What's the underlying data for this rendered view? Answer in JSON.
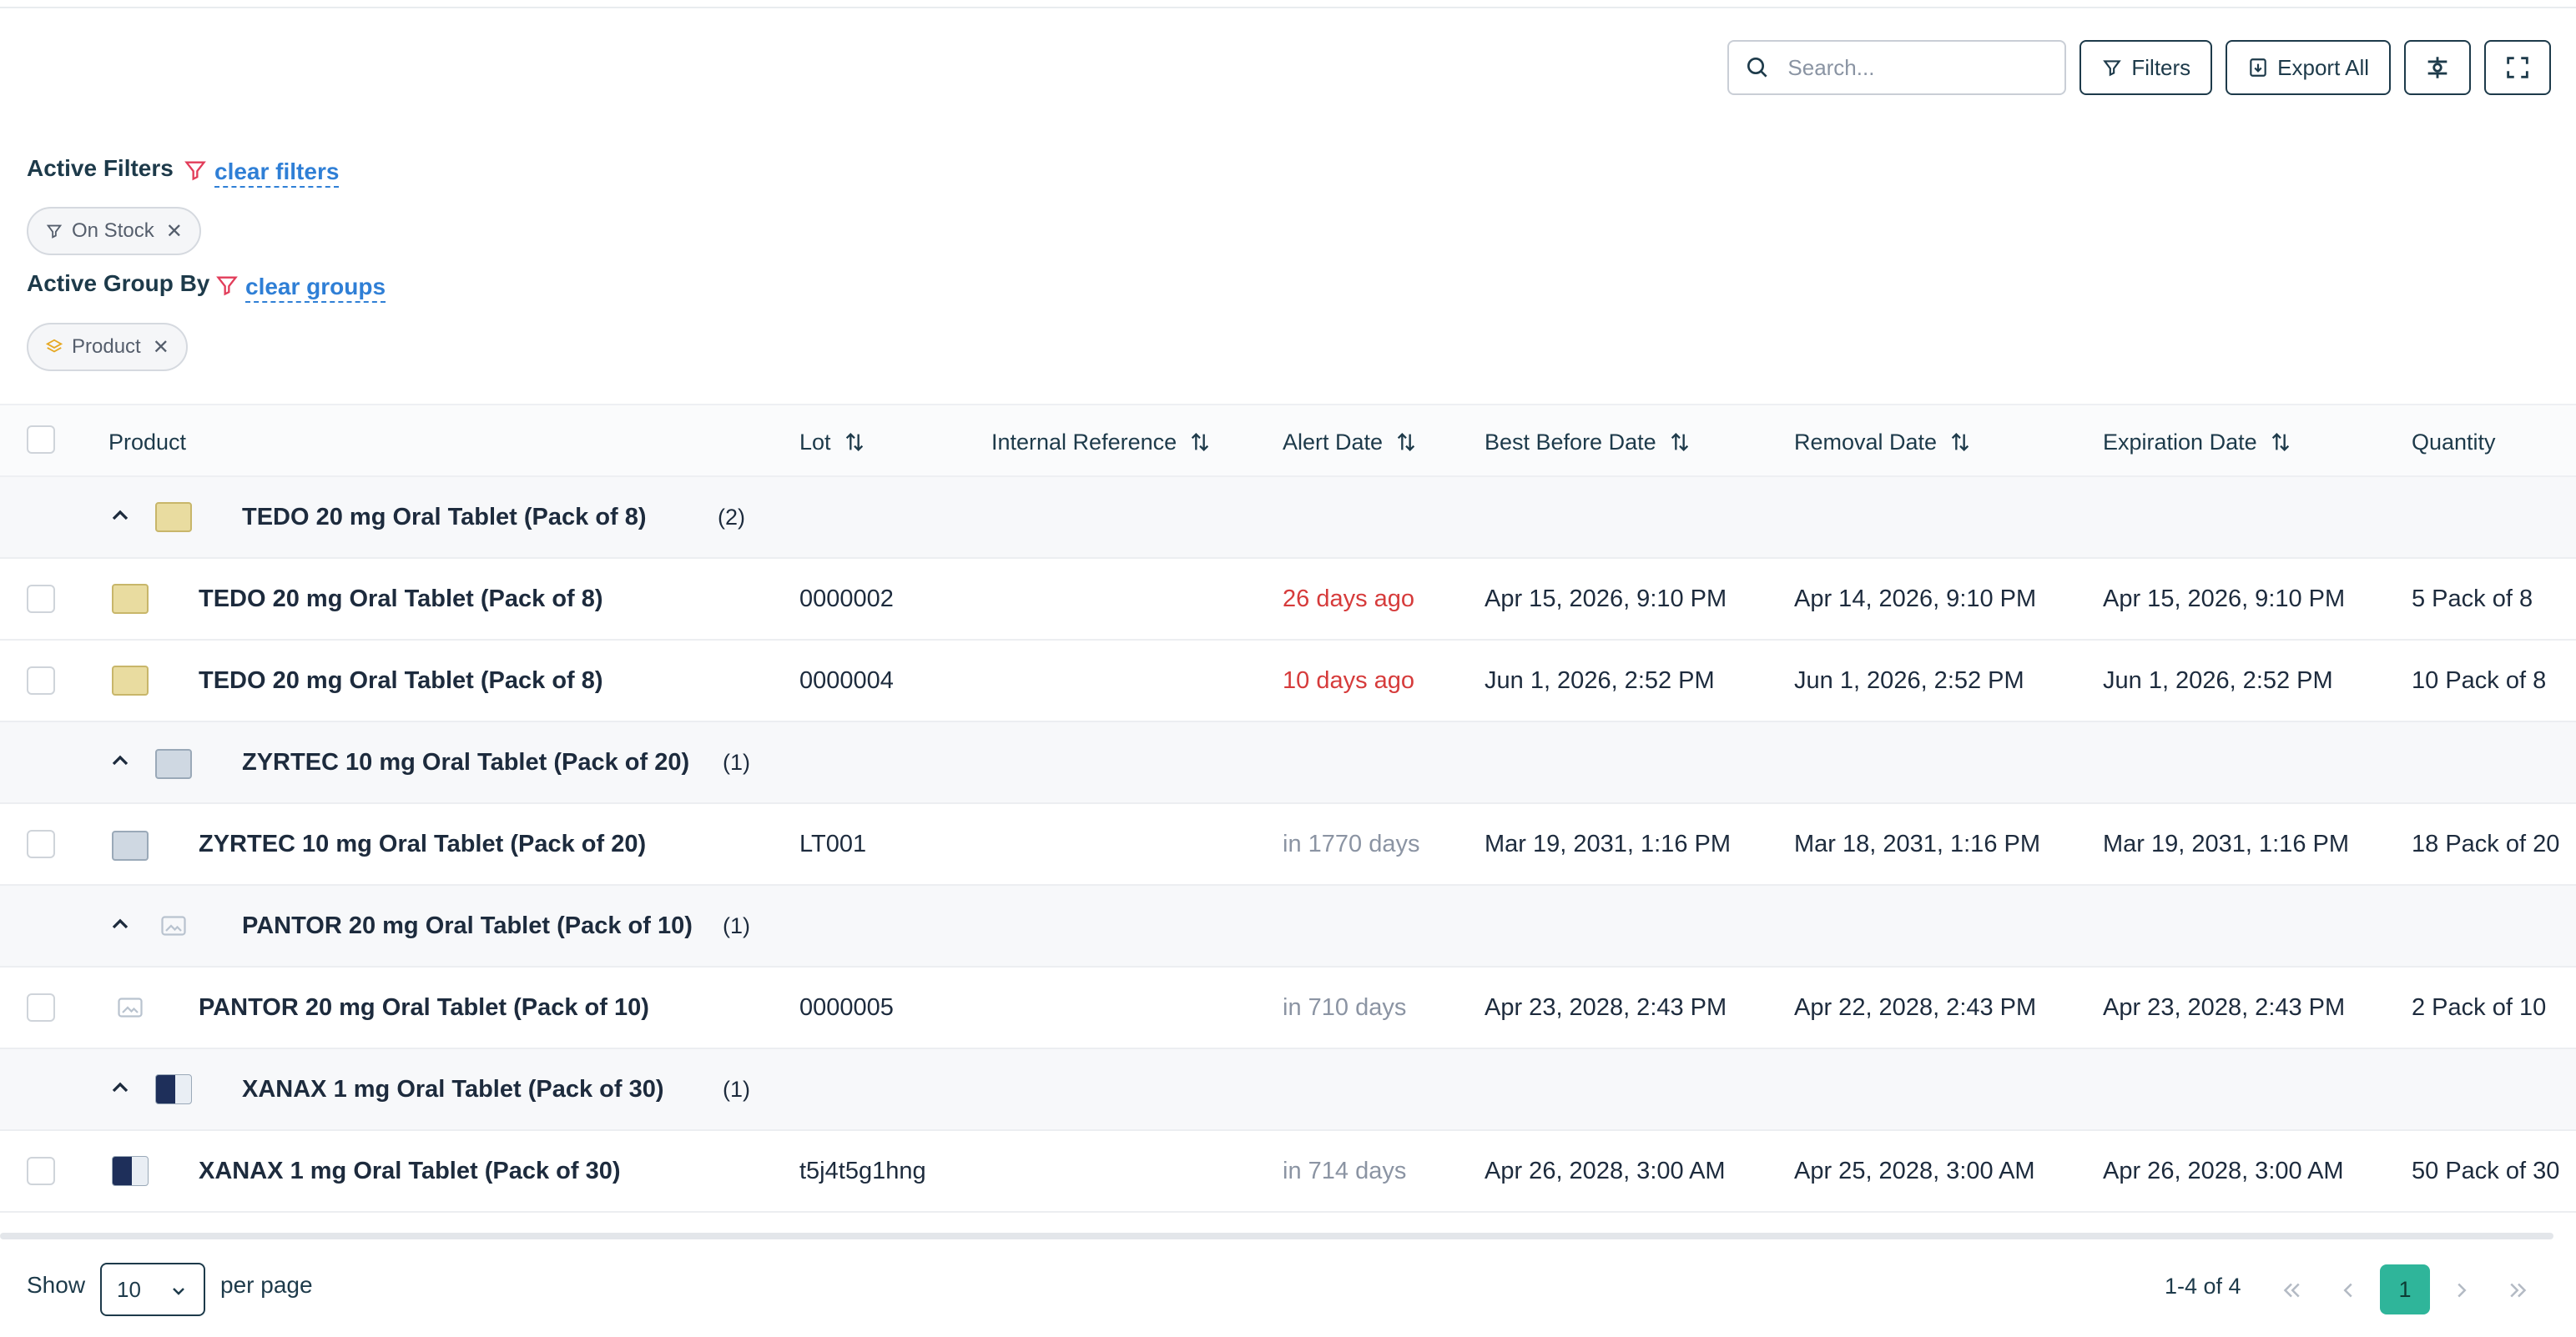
{
  "toolbar": {
    "search_placeholder": "Search...",
    "filters_label": "Filters",
    "export_label": "Export All"
  },
  "active_filters": {
    "label": "Active Filters",
    "clear_label": "clear filters",
    "chips": [
      {
        "label": "On Stock"
      }
    ]
  },
  "active_groups": {
    "label": "Active Group By",
    "clear_label": "clear groups",
    "chips": [
      {
        "label": "Product"
      }
    ]
  },
  "table": {
    "columns": {
      "product": "Product",
      "lot": "Lot",
      "internal_reference": "Internal Reference",
      "alert_date": "Alert Date",
      "best_before": "Best Before Date",
      "removal": "Removal Date",
      "expiration": "Expiration Date",
      "quantity": "Quantity"
    },
    "groups": [
      {
        "name": "TEDO 20 mg Oral Tablet (Pack of 8)",
        "count": "(2)",
        "thumb": "tedo-box",
        "rows": [
          {
            "product": "TEDO 20 mg Oral Tablet (Pack of 8)",
            "lot": "0000002",
            "alert": "26 days ago",
            "alert_status": "overdue",
            "best_before": "Apr 15, 2026, 9:10 PM",
            "removal": "Apr 14, 2026, 9:10 PM",
            "expiration": "Apr 15, 2026, 9:10 PM",
            "quantity": "5 Pack of 8"
          },
          {
            "product": "TEDO 20 mg Oral Tablet (Pack of 8)",
            "lot": "0000004",
            "alert": "10 days ago",
            "alert_status": "overdue",
            "best_before": "Jun 1, 2026, 2:52 PM",
            "removal": "Jun 1, 2026, 2:52 PM",
            "expiration": "Jun 1, 2026, 2:52 PM",
            "quantity": "10 Pack of 8"
          }
        ]
      },
      {
        "name": "ZYRTEC 10 mg Oral Tablet (Pack of 20)",
        "count": "(1)",
        "thumb": "zyrtec-box",
        "rows": [
          {
            "product": "ZYRTEC 10 mg Oral Tablet (Pack of 20)",
            "lot": "LT001",
            "alert": "in 1770 days",
            "alert_status": "future",
            "best_before": "Mar 19, 2031, 1:16 PM",
            "removal": "Mar 18, 2031, 1:16 PM",
            "expiration": "Mar 19, 2031, 1:16 PM",
            "quantity": "18 Pack of 20"
          }
        ]
      },
      {
        "name": "PANTOR 20 mg Oral Tablet (Pack of 10)",
        "count": "(1)",
        "thumb": "image-placeholder",
        "rows": [
          {
            "product": "PANTOR 20 mg Oral Tablet (Pack of 10)",
            "lot": "0000005",
            "alert": "in 710 days",
            "alert_status": "future",
            "best_before": "Apr 23, 2028, 2:43 PM",
            "removal": "Apr 22, 2028, 2:43 PM",
            "expiration": "Apr 23, 2028, 2:43 PM",
            "quantity": "2 Pack of 10"
          }
        ]
      },
      {
        "name": "XANAX 1 mg Oral Tablet (Pack of 30)",
        "count": "(1)",
        "thumb": "xanax-box",
        "rows": [
          {
            "product": "XANAX 1 mg Oral Tablet (Pack of 30)",
            "lot": "t5j4t5g1hng",
            "alert": "in 714 days",
            "alert_status": "future",
            "best_before": "Apr 26, 2028, 3:00 AM",
            "removal": "Apr 25, 2028, 3:00 AM",
            "expiration": "Apr 26, 2028, 3:00 AM",
            "quantity": "50 Pack of 30"
          }
        ]
      }
    ]
  },
  "footer": {
    "show_label": "Show",
    "per_page_value": "10",
    "per_page_label": "per page",
    "range_text": "1-4 of 4",
    "current_page": "1"
  },
  "colors": {
    "accent": "#2fb59a",
    "link": "#2f7fd6",
    "overdue": "#d63b3b",
    "future": "#8b94a3",
    "primary_text": "#1d3a4a"
  }
}
